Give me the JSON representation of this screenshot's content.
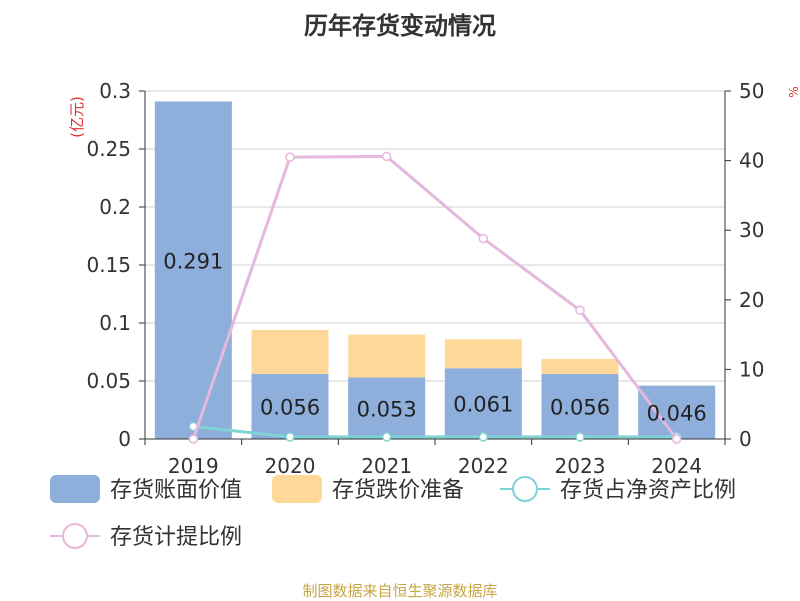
{
  "chart_data": {
    "type": "bar",
    "title": "历年存货变动情况",
    "categories": [
      "2019",
      "2020",
      "2021",
      "2022",
      "2023",
      "2024"
    ],
    "left_axis": {
      "label": "(亿元)",
      "ylim": [
        0,
        0.3
      ],
      "ticks": [
        "0",
        "0.05",
        "0.1",
        "0.15",
        "0.2",
        "0.25",
        "0.3"
      ]
    },
    "right_axis": {
      "ylim": [
        0,
        50
      ],
      "ticks": [
        "0",
        "10",
        "20",
        "30",
        "40",
        "50"
      ],
      "label": "%"
    },
    "series": [
      {
        "name": "存货账面价值",
        "type": "bar",
        "axis": "left",
        "color": "#8eaedb",
        "values": [
          0.291,
          0.056,
          0.053,
          0.061,
          0.056,
          0.046
        ],
        "labels": [
          "0.291",
          "0.056",
          "0.053",
          "0.061",
          "0.056",
          "0.046"
        ]
      },
      {
        "name": "存货跌价准备",
        "type": "bar",
        "axis": "left",
        "stacked": true,
        "color": "#fdd898",
        "values": [
          0,
          0.038,
          0.037,
          0.025,
          0.013,
          0
        ]
      },
      {
        "name": "存货占净资产比例",
        "type": "line",
        "axis": "right",
        "color": "#7fd3d6",
        "values": [
          1.8,
          0.3,
          0.3,
          0.3,
          0.3,
          0.3
        ]
      },
      {
        "name": "存货计提比例",
        "type": "line",
        "axis": "right",
        "color": "#e5b8dd",
        "values": [
          0,
          40.5,
          40.6,
          28.8,
          18.5,
          0
        ]
      }
    ],
    "grid": true,
    "legend_position": "bottom"
  },
  "source": "制图数据来自恒生聚源数据库"
}
